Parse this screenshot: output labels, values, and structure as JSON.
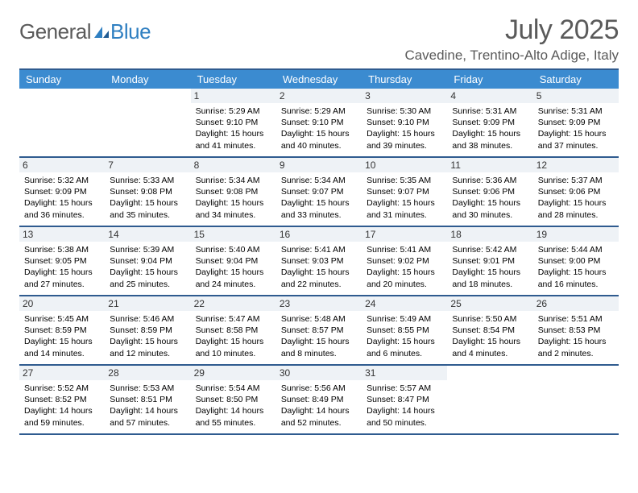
{
  "logo": {
    "word1": "General",
    "word2": "Blue"
  },
  "title": "July 2025",
  "location": "Cavedine, Trentino-Alto Adige, Italy",
  "colors": {
    "header_bg": "#3b8bd0",
    "border": "#2f5b8f",
    "daynum_bg": "#eef2f6",
    "text_muted": "#5a5a5a",
    "logo_blue": "#2f7fc1"
  },
  "typography": {
    "title_fontsize": 34,
    "location_fontsize": 17,
    "dow_fontsize": 13,
    "daynum_fontsize": 12,
    "info_fontsize": 10.5
  },
  "dow": [
    "Sunday",
    "Monday",
    "Tuesday",
    "Wednesday",
    "Thursday",
    "Friday",
    "Saturday"
  ],
  "weeks": [
    [
      {
        "n": "",
        "sr": "",
        "ss": "",
        "dl": ""
      },
      {
        "n": "",
        "sr": "",
        "ss": "",
        "dl": ""
      },
      {
        "n": "1",
        "sr": "Sunrise: 5:29 AM",
        "ss": "Sunset: 9:10 PM",
        "dl": "Daylight: 15 hours and 41 minutes."
      },
      {
        "n": "2",
        "sr": "Sunrise: 5:29 AM",
        "ss": "Sunset: 9:10 PM",
        "dl": "Daylight: 15 hours and 40 minutes."
      },
      {
        "n": "3",
        "sr": "Sunrise: 5:30 AM",
        "ss": "Sunset: 9:10 PM",
        "dl": "Daylight: 15 hours and 39 minutes."
      },
      {
        "n": "4",
        "sr": "Sunrise: 5:31 AM",
        "ss": "Sunset: 9:09 PM",
        "dl": "Daylight: 15 hours and 38 minutes."
      },
      {
        "n": "5",
        "sr": "Sunrise: 5:31 AM",
        "ss": "Sunset: 9:09 PM",
        "dl": "Daylight: 15 hours and 37 minutes."
      }
    ],
    [
      {
        "n": "6",
        "sr": "Sunrise: 5:32 AM",
        "ss": "Sunset: 9:09 PM",
        "dl": "Daylight: 15 hours and 36 minutes."
      },
      {
        "n": "7",
        "sr": "Sunrise: 5:33 AM",
        "ss": "Sunset: 9:08 PM",
        "dl": "Daylight: 15 hours and 35 minutes."
      },
      {
        "n": "8",
        "sr": "Sunrise: 5:34 AM",
        "ss": "Sunset: 9:08 PM",
        "dl": "Daylight: 15 hours and 34 minutes."
      },
      {
        "n": "9",
        "sr": "Sunrise: 5:34 AM",
        "ss": "Sunset: 9:07 PM",
        "dl": "Daylight: 15 hours and 33 minutes."
      },
      {
        "n": "10",
        "sr": "Sunrise: 5:35 AM",
        "ss": "Sunset: 9:07 PM",
        "dl": "Daylight: 15 hours and 31 minutes."
      },
      {
        "n": "11",
        "sr": "Sunrise: 5:36 AM",
        "ss": "Sunset: 9:06 PM",
        "dl": "Daylight: 15 hours and 30 minutes."
      },
      {
        "n": "12",
        "sr": "Sunrise: 5:37 AM",
        "ss": "Sunset: 9:06 PM",
        "dl": "Daylight: 15 hours and 28 minutes."
      }
    ],
    [
      {
        "n": "13",
        "sr": "Sunrise: 5:38 AM",
        "ss": "Sunset: 9:05 PM",
        "dl": "Daylight: 15 hours and 27 minutes."
      },
      {
        "n": "14",
        "sr": "Sunrise: 5:39 AM",
        "ss": "Sunset: 9:04 PM",
        "dl": "Daylight: 15 hours and 25 minutes."
      },
      {
        "n": "15",
        "sr": "Sunrise: 5:40 AM",
        "ss": "Sunset: 9:04 PM",
        "dl": "Daylight: 15 hours and 24 minutes."
      },
      {
        "n": "16",
        "sr": "Sunrise: 5:41 AM",
        "ss": "Sunset: 9:03 PM",
        "dl": "Daylight: 15 hours and 22 minutes."
      },
      {
        "n": "17",
        "sr": "Sunrise: 5:41 AM",
        "ss": "Sunset: 9:02 PM",
        "dl": "Daylight: 15 hours and 20 minutes."
      },
      {
        "n": "18",
        "sr": "Sunrise: 5:42 AM",
        "ss": "Sunset: 9:01 PM",
        "dl": "Daylight: 15 hours and 18 minutes."
      },
      {
        "n": "19",
        "sr": "Sunrise: 5:44 AM",
        "ss": "Sunset: 9:00 PM",
        "dl": "Daylight: 15 hours and 16 minutes."
      }
    ],
    [
      {
        "n": "20",
        "sr": "Sunrise: 5:45 AM",
        "ss": "Sunset: 8:59 PM",
        "dl": "Daylight: 15 hours and 14 minutes."
      },
      {
        "n": "21",
        "sr": "Sunrise: 5:46 AM",
        "ss": "Sunset: 8:59 PM",
        "dl": "Daylight: 15 hours and 12 minutes."
      },
      {
        "n": "22",
        "sr": "Sunrise: 5:47 AM",
        "ss": "Sunset: 8:58 PM",
        "dl": "Daylight: 15 hours and 10 minutes."
      },
      {
        "n": "23",
        "sr": "Sunrise: 5:48 AM",
        "ss": "Sunset: 8:57 PM",
        "dl": "Daylight: 15 hours and 8 minutes."
      },
      {
        "n": "24",
        "sr": "Sunrise: 5:49 AM",
        "ss": "Sunset: 8:55 PM",
        "dl": "Daylight: 15 hours and 6 minutes."
      },
      {
        "n": "25",
        "sr": "Sunrise: 5:50 AM",
        "ss": "Sunset: 8:54 PM",
        "dl": "Daylight: 15 hours and 4 minutes."
      },
      {
        "n": "26",
        "sr": "Sunrise: 5:51 AM",
        "ss": "Sunset: 8:53 PM",
        "dl": "Daylight: 15 hours and 2 minutes."
      }
    ],
    [
      {
        "n": "27",
        "sr": "Sunrise: 5:52 AM",
        "ss": "Sunset: 8:52 PM",
        "dl": "Daylight: 14 hours and 59 minutes."
      },
      {
        "n": "28",
        "sr": "Sunrise: 5:53 AM",
        "ss": "Sunset: 8:51 PM",
        "dl": "Daylight: 14 hours and 57 minutes."
      },
      {
        "n": "29",
        "sr": "Sunrise: 5:54 AM",
        "ss": "Sunset: 8:50 PM",
        "dl": "Daylight: 14 hours and 55 minutes."
      },
      {
        "n": "30",
        "sr": "Sunrise: 5:56 AM",
        "ss": "Sunset: 8:49 PM",
        "dl": "Daylight: 14 hours and 52 minutes."
      },
      {
        "n": "31",
        "sr": "Sunrise: 5:57 AM",
        "ss": "Sunset: 8:47 PM",
        "dl": "Daylight: 14 hours and 50 minutes."
      },
      {
        "n": "",
        "sr": "",
        "ss": "",
        "dl": ""
      },
      {
        "n": "",
        "sr": "",
        "ss": "",
        "dl": ""
      }
    ]
  ]
}
